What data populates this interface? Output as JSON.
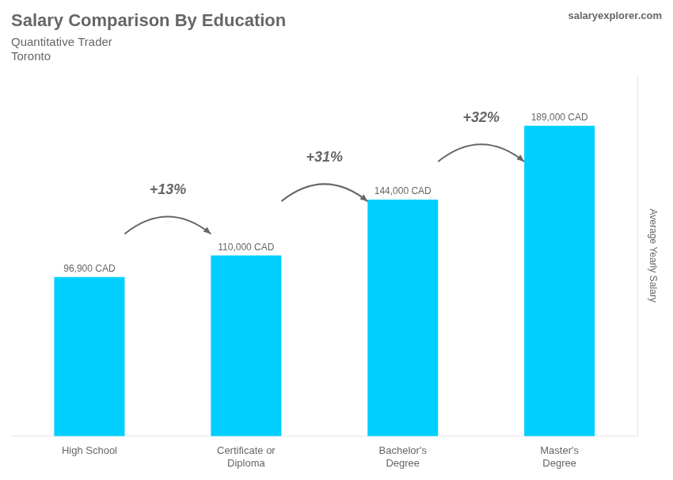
{
  "chart_data": {
    "type": "bar",
    "title": "Salary Comparison By Education",
    "subtitle": [
      "Quantitative Trader",
      "Toronto"
    ],
    "source": "salaryexplorer.com",
    "y_label": "Average Yearly Salary",
    "categories": [
      "High School",
      "Certificate or\nDiploma",
      "Bachelor's\nDegree",
      "Master's\nDegree"
    ],
    "values": [
      96900,
      110000,
      144000,
      189000
    ],
    "value_labels": [
      "96,900 CAD",
      "110,000 CAD",
      "144,000 CAD",
      "189,000 CAD"
    ],
    "data_labels": true,
    "annotations": [
      "+13%",
      "+31%",
      "+32%"
    ],
    "color": "#00cfff",
    "ylim": [
      0,
      220000
    ],
    "tick_labels": "x",
    "grid": false
  }
}
